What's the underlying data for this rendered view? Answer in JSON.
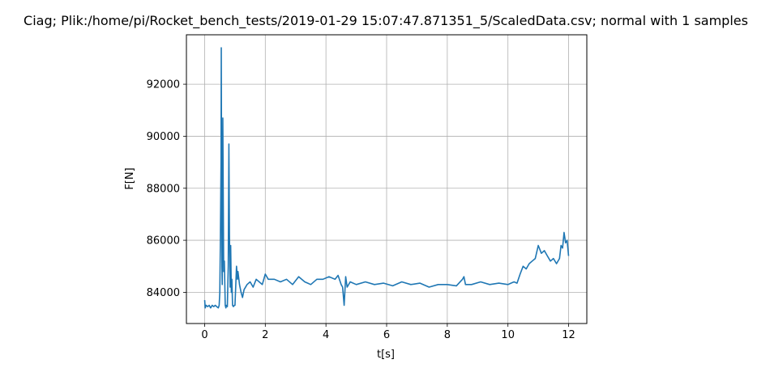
{
  "chart_data": {
    "type": "line",
    "title": "Ciag; Plik:/home/pi/Rocket_bench_tests/2019-01-29 15:07:47.871351_5/ScaledData.csv; normal with 1 samples",
    "xlabel": "t[s]",
    "ylabel": "F[N]",
    "xlim": [
      -0.6,
      12.6
    ],
    "ylim": [
      82800,
      93900
    ],
    "xticks": [
      0,
      2,
      4,
      6,
      8,
      10,
      12
    ],
    "yticks": [
      84000,
      86000,
      88000,
      90000,
      92000
    ],
    "xtick_labels": [
      "0",
      "2",
      "4",
      "6",
      "8",
      "10",
      "12"
    ],
    "ytick_labels": [
      "84000",
      "86000",
      "88000",
      "90000",
      "92000"
    ],
    "grid": true,
    "line_color": "#1f77b4",
    "series": [
      {
        "x": [
          0.0,
          0.02,
          0.05,
          0.1,
          0.15,
          0.2,
          0.25,
          0.3,
          0.35,
          0.4,
          0.45,
          0.48,
          0.5,
          0.52,
          0.54,
          0.55,
          0.56,
          0.57,
          0.58,
          0.6,
          0.62,
          0.63,
          0.65,
          0.68,
          0.7,
          0.72,
          0.75,
          0.78,
          0.8,
          0.82,
          0.84,
          0.86,
          0.88,
          0.9,
          0.92,
          0.95,
          0.98,
          1.0,
          1.05,
          1.08,
          1.1,
          1.15,
          1.2,
          1.25,
          1.3,
          1.4,
          1.5,
          1.6,
          1.7,
          1.8,
          1.9,
          2.0,
          2.1,
          2.3,
          2.5,
          2.7,
          2.9,
          3.1,
          3.3,
          3.5,
          3.7,
          3.9,
          4.1,
          4.3,
          4.4,
          4.5,
          4.55,
          4.6,
          4.65,
          4.7,
          4.8,
          5.0,
          5.3,
          5.6,
          5.9,
          6.2,
          6.5,
          6.8,
          7.1,
          7.4,
          7.7,
          8.0,
          8.3,
          8.5,
          8.55,
          8.6,
          8.8,
          9.1,
          9.4,
          9.7,
          10.0,
          10.1,
          10.2,
          10.3,
          10.4,
          10.5,
          10.6,
          10.7,
          10.8,
          10.9,
          11.0,
          11.1,
          11.2,
          11.3,
          11.4,
          11.5,
          11.6,
          11.7,
          11.75,
          11.8,
          11.85,
          11.9,
          11.95,
          12.0
        ],
        "y": [
          83700,
          83400,
          83500,
          83450,
          83500,
          83400,
          83500,
          83450,
          83500,
          83450,
          83400,
          83500,
          84000,
          86000,
          89000,
          93400,
          88000,
          85000,
          84300,
          90700,
          86200,
          84800,
          85200,
          83500,
          83400,
          83500,
          83450,
          85000,
          89700,
          86200,
          84200,
          85800,
          84000,
          84500,
          83500,
          83450,
          83500,
          83500,
          85000,
          84500,
          84800,
          84300,
          84000,
          83800,
          84100,
          84300,
          84400,
          84200,
          84500,
          84400,
          84300,
          84700,
          84500,
          84500,
          84400,
          84500,
          84300,
          84600,
          84400,
          84300,
          84500,
          84500,
          84600,
          84500,
          84650,
          84300,
          84200,
          83500,
          84600,
          84200,
          84400,
          84300,
          84400,
          84300,
          84350,
          84250,
          84400,
          84300,
          84350,
          84200,
          84300,
          84300,
          84250,
          84500,
          84600,
          84300,
          84300,
          84400,
          84300,
          84350,
          84300,
          84350,
          84400,
          84350,
          84700,
          85000,
          84900,
          85100,
          85200,
          85300,
          85800,
          85500,
          85600,
          85400,
          85200,
          85300,
          85100,
          85300,
          85800,
          85700,
          86300,
          85900,
          86000,
          85400
        ]
      }
    ]
  }
}
